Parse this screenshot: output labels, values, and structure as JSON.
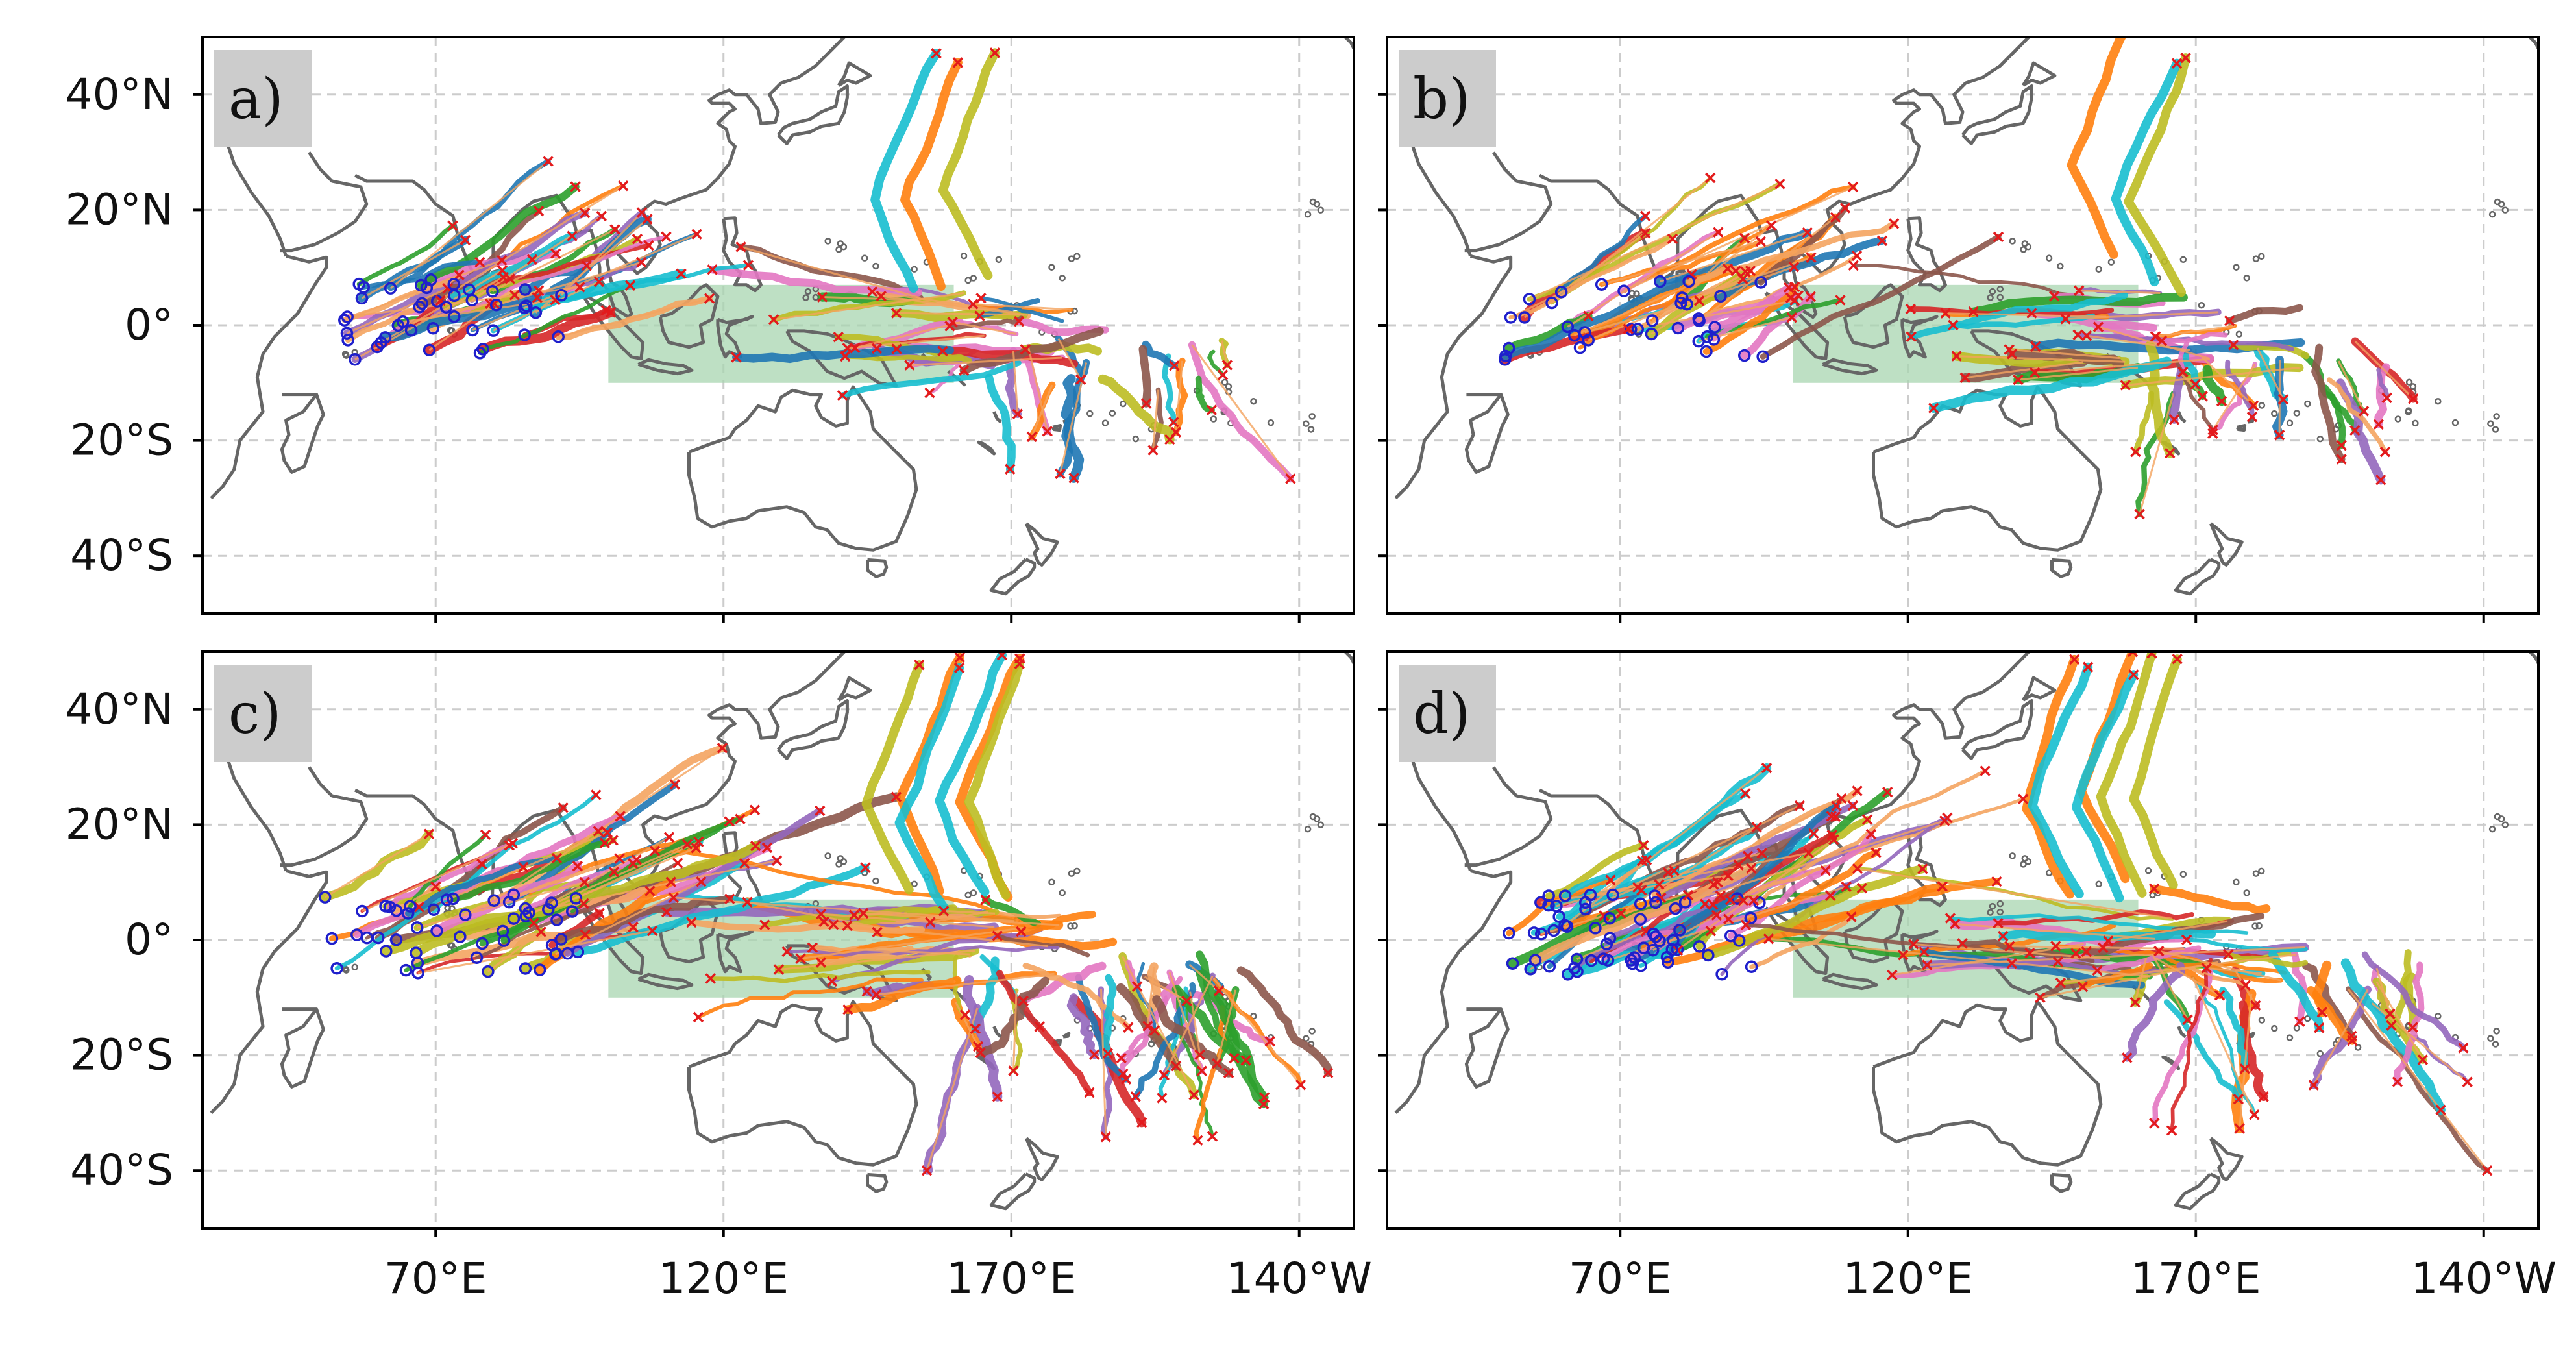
{
  "figure": {
    "extent": {
      "lon_min": 29.5,
      "lon_max": 229.5,
      "lat_min": -50,
      "lat_max": 50
    },
    "lon_ticks": [
      {
        "value": 70,
        "label": "70°E"
      },
      {
        "value": 120,
        "label": "120°E"
      },
      {
        "value": 170,
        "label": "170°E"
      },
      {
        "value": 220,
        "label": "140°W"
      }
    ],
    "lat_ticks": [
      {
        "value": 40,
        "label": "40°N"
      },
      {
        "value": 20,
        "label": "20°N"
      },
      {
        "value": 0,
        "label": "0°"
      },
      {
        "value": -20,
        "label": "20°S"
      },
      {
        "value": -40,
        "label": "40°S"
      }
    ],
    "highlight_box": {
      "lon_min": 100,
      "lon_max": 160,
      "lat_min": -10,
      "lat_max": 7,
      "color": "#a8d5b0"
    },
    "colors": {
      "land": "#666666",
      "grid": "#cccccc",
      "genesis_marker": "#1f1fcc",
      "lysis_marker": "#e31a1c",
      "label_box": "#cccccc",
      "track_palette": [
        "#1f77b4",
        "#ff7f0e",
        "#2ca02c",
        "#d62728",
        "#9467bd",
        "#8c564b",
        "#e377c2",
        "#bcbd22",
        "#17becf",
        "#f4a460"
      ]
    }
  },
  "panels": [
    {
      "id": "a",
      "label": "a)"
    },
    {
      "id": "b",
      "label": "b)"
    },
    {
      "id": "c",
      "label": "c)"
    },
    {
      "id": "d",
      "label": "d)"
    }
  ]
}
